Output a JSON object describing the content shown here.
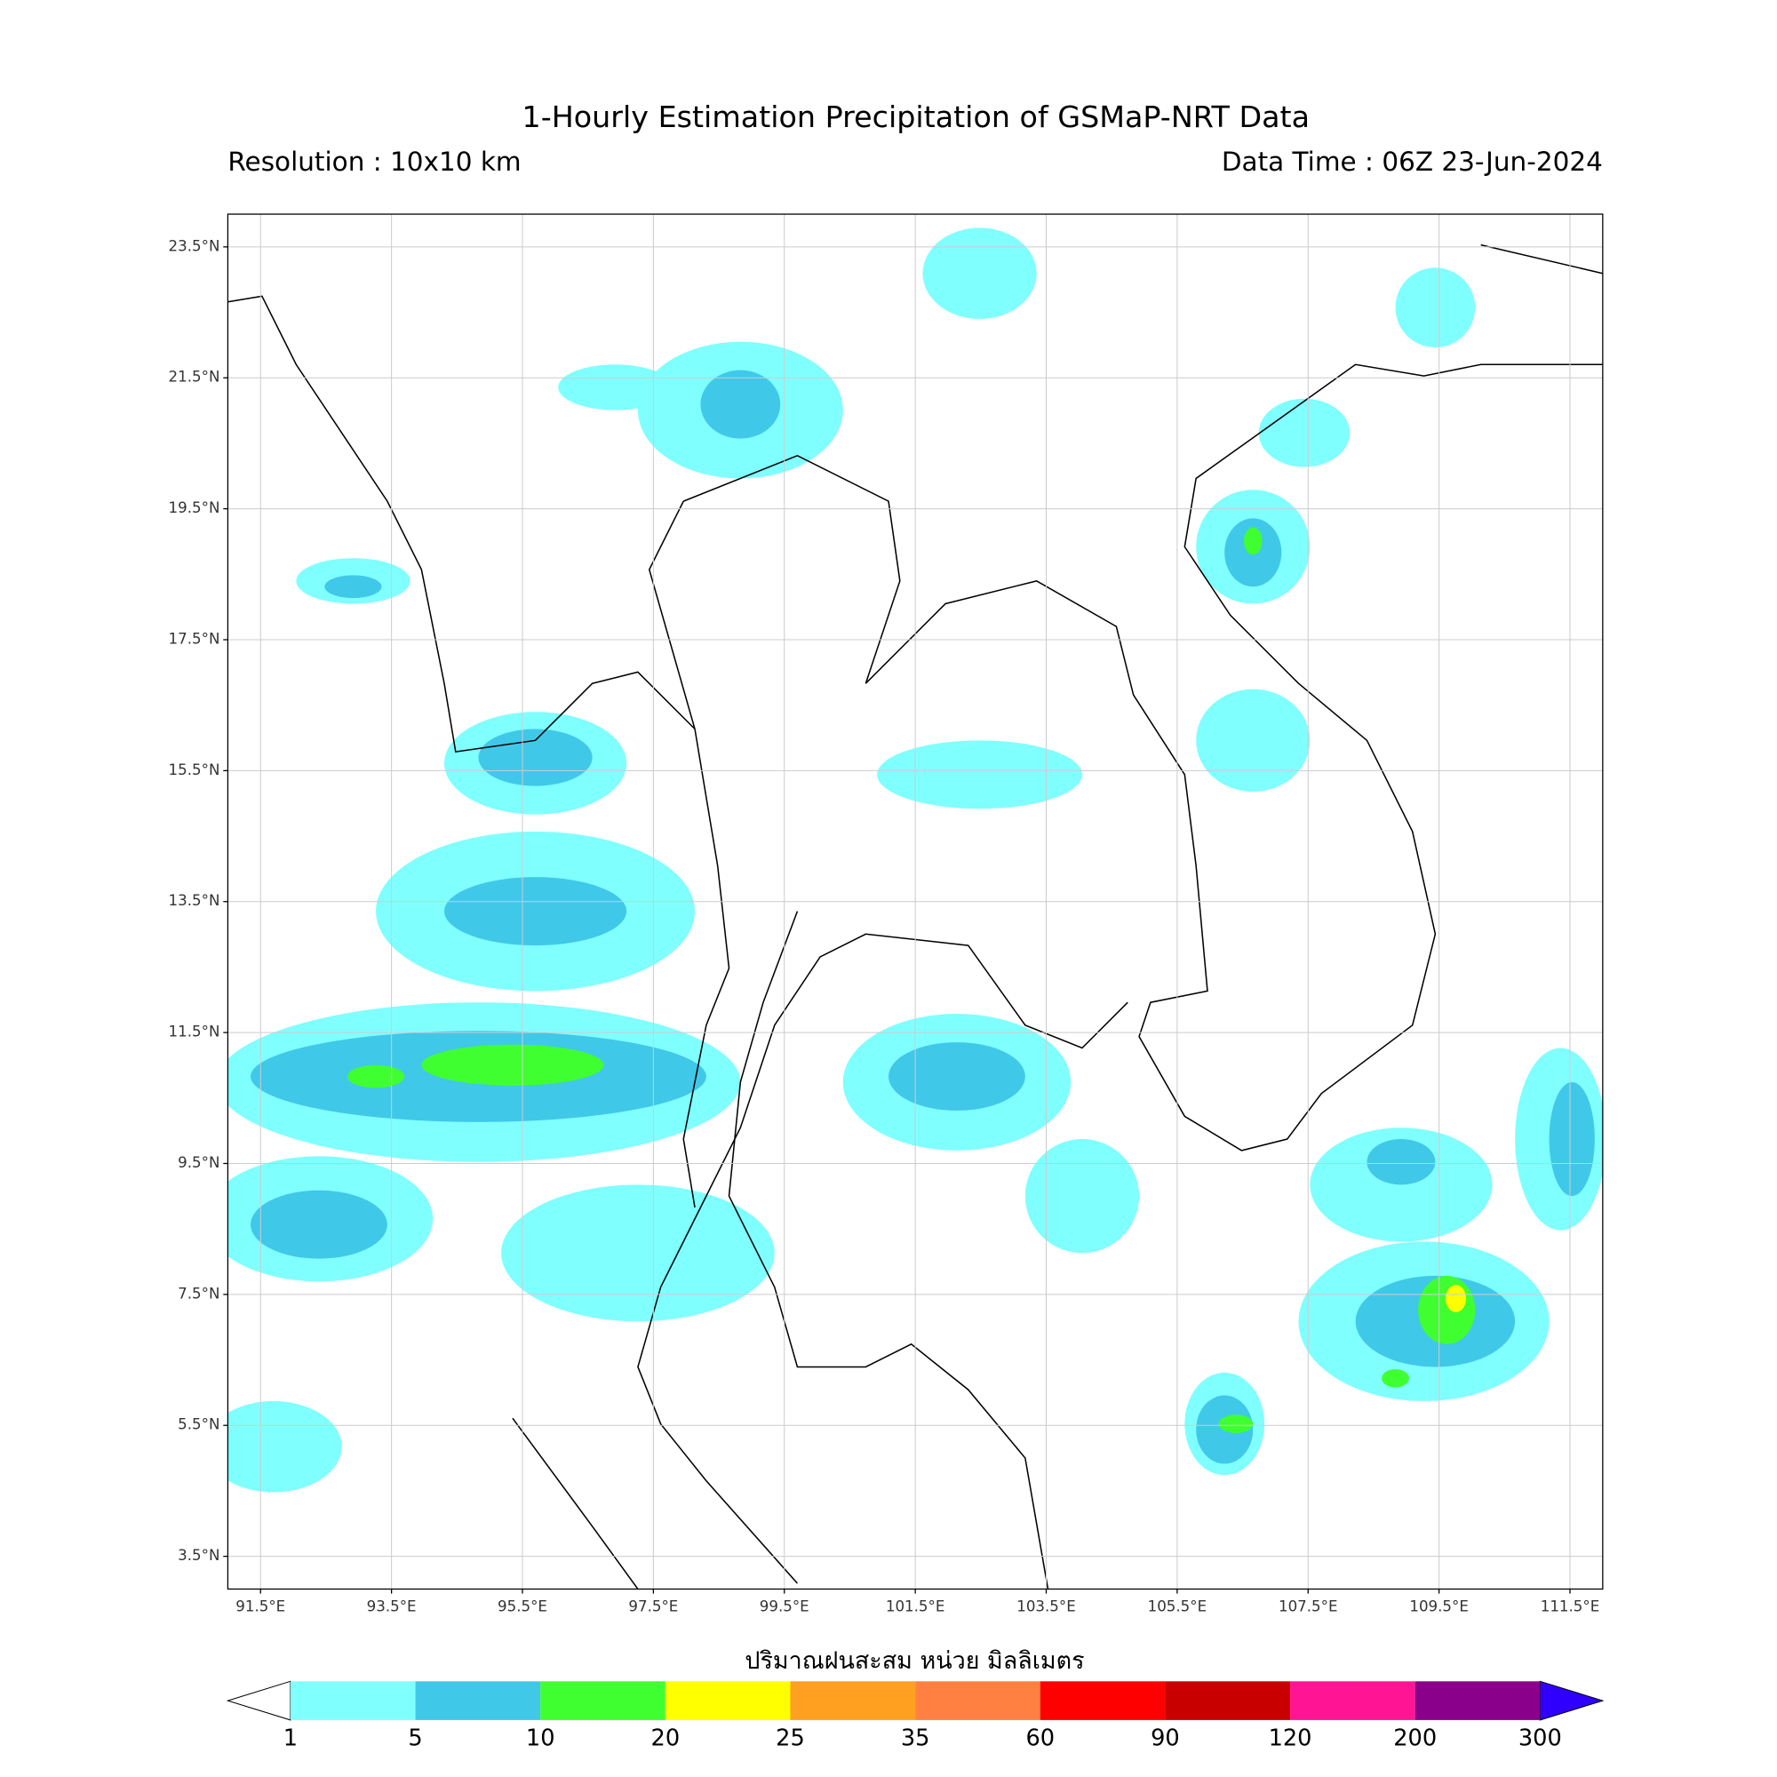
{
  "title": "1-Hourly Estimation Precipitation of GSMaP-NRT Data",
  "resolution": "Resolution : 10x10 km",
  "data_time": "Data Time : 06Z 23-Jun-2024",
  "map": {
    "xlim": [
      91,
      112
    ],
    "ylim": [
      3,
      24
    ],
    "grid": true,
    "xticks": [
      {
        "value": 91.5,
        "label": "91.5°E"
      },
      {
        "value": 93.5,
        "label": "93.5°E"
      },
      {
        "value": 95.5,
        "label": "95.5°E"
      },
      {
        "value": 97.5,
        "label": "97.5°E"
      },
      {
        "value": 99.5,
        "label": "99.5°E"
      },
      {
        "value": 101.5,
        "label": "101.5°E"
      },
      {
        "value": 103.5,
        "label": "103.5°E"
      },
      {
        "value": 105.5,
        "label": "105.5°E"
      },
      {
        "value": 107.5,
        "label": "107.5°E"
      },
      {
        "value": 109.5,
        "label": "109.5°E"
      },
      {
        "value": 111.5,
        "label": "111.5°E"
      }
    ],
    "yticks": [
      {
        "value": 3.5,
        "label": "3.5°N"
      },
      {
        "value": 5.5,
        "label": "5.5°N"
      },
      {
        "value": 7.5,
        "label": "7.5°N"
      },
      {
        "value": 9.5,
        "label": "9.5°N"
      },
      {
        "value": 11.5,
        "label": "11.5°N"
      },
      {
        "value": 13.5,
        "label": "13.5°N"
      },
      {
        "value": 15.5,
        "label": "15.5°N"
      },
      {
        "value": 17.5,
        "label": "17.5°N"
      },
      {
        "value": 19.5,
        "label": "19.5°N"
      },
      {
        "value": 21.5,
        "label": "21.5°N"
      },
      {
        "value": 23.5,
        "label": "23.5°N"
      }
    ]
  },
  "colorbar": {
    "title": "ปริมาณฝนสะสม หน่วย มิลลิเมตร",
    "levels": [
      1,
      5,
      10,
      20,
      25,
      35,
      60,
      90,
      120,
      200,
      300
    ],
    "colors": [
      "#80ffff",
      "#40c8e8",
      "#40ff30",
      "#ffff00",
      "#ffa020",
      "#ff8040",
      "#ff0000",
      "#c80000",
      "#ff1493",
      "#8b008b"
    ],
    "under_color": "#ffffff",
    "over_color": "#3000ff"
  }
}
